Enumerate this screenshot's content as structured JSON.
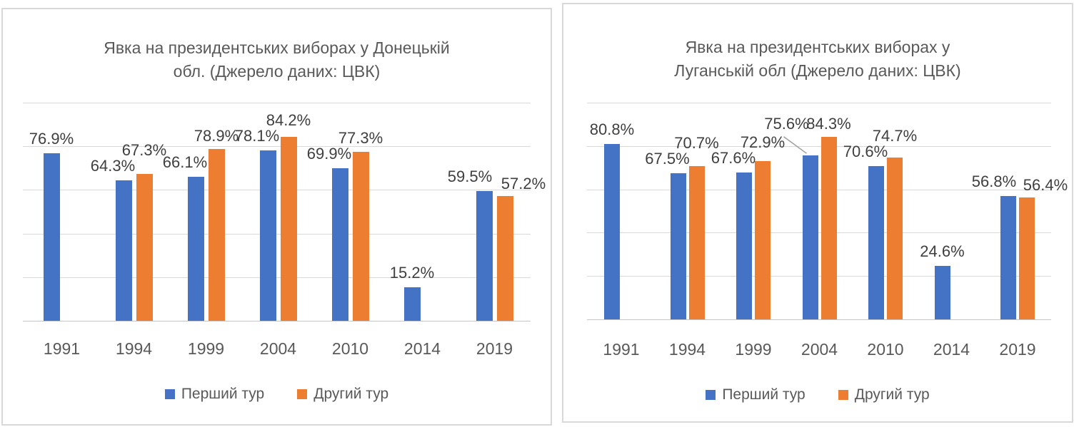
{
  "chart_data": [
    {
      "type": "bar",
      "title": "Явка на президентських виборах у Донецькій обл. (Джерело даних: ЦВК)",
      "title_lines": [
        "Явка на президентських виборах у Донецькій",
        "обл. (Джерело даних: ЦВК)"
      ],
      "categories": [
        "1991",
        "1994",
        "1999",
        "2004",
        "2010",
        "2014",
        "2019"
      ],
      "series": [
        {
          "name": "Перший тур",
          "color": "#4472C4",
          "values": [
            76.9,
            64.3,
            66.1,
            78.1,
            69.9,
            15.2,
            59.5
          ]
        },
        {
          "name": "Другий тур",
          "color": "#ED7D31",
          "values": [
            null,
            67.3,
            78.9,
            84.2,
            77.3,
            null,
            57.2
          ]
        }
      ],
      "data_labels": [
        "76.9%",
        "64.3%",
        "66.1%",
        "78.1%",
        "69.9%",
        "15.2%",
        "59.5%",
        "67.3%",
        "78.9%",
        "84.2%",
        "77.3%",
        "57.2%"
      ],
      "label_format": "{value}%",
      "ylim": [
        0,
        100
      ],
      "grid_interval": 20,
      "grid": true,
      "y_axis_labels": false,
      "legend_position": "bottom",
      "callout_point": null
    },
    {
      "type": "bar",
      "title": "Явка на президентських виборах у Луганській обл (Джерело даних: ЦВК)",
      "title_lines": [
        "Явка на президентських виборах у",
        "Луганській обл (Джерело даних: ЦВК)"
      ],
      "categories": [
        "1991",
        "1994",
        "1999",
        "2004",
        "2010",
        "2014",
        "2019"
      ],
      "series": [
        {
          "name": "Перший тур",
          "color": "#4472C4",
          "values": [
            80.8,
            67.5,
            67.6,
            75.6,
            70.6,
            24.6,
            56.8
          ]
        },
        {
          "name": "Другий тур",
          "color": "#ED7D31",
          "values": [
            null,
            70.7,
            72.9,
            84.3,
            74.7,
            null,
            56.4
          ]
        }
      ],
      "data_labels": [
        "80.8%",
        "67.5%",
        "67.6%",
        "75.6%",
        "70.6%",
        "24.6%",
        "56.8%",
        "70.7%",
        "72.9%",
        "84.3%",
        "74.7%",
        "56.4%"
      ],
      "label_format": "{value}%",
      "ylim": [
        0,
        100
      ],
      "grid_interval": 20,
      "grid": true,
      "y_axis_labels": false,
      "legend_position": "bottom",
      "callout_point": {
        "category_index": 3,
        "series_index": 0
      }
    }
  ],
  "colors": {
    "first_round": "#4472C4",
    "second_round": "#ED7D31",
    "gridline": "#D9D9D9",
    "text_muted": "#595959",
    "data_label": "#3F3F3F",
    "panel_border": "#D9D9D9"
  }
}
